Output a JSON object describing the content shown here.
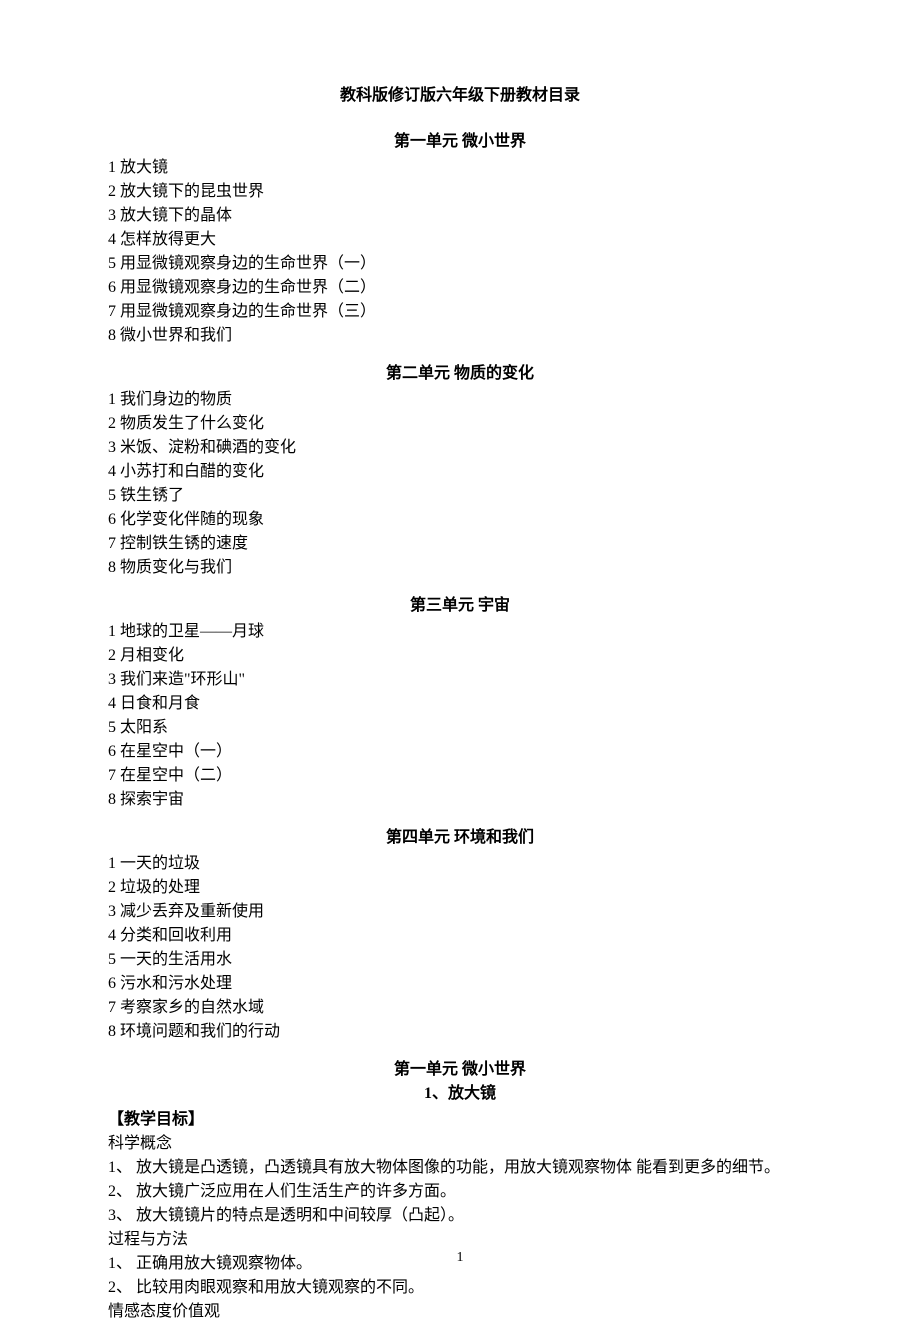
{
  "doc": {
    "title": "教科版修订版六年级下册教材目录",
    "page_number": "1",
    "background_color": "#ffffff",
    "text_color": "#000000",
    "font_family": "SimSun",
    "base_fontsize": 16
  },
  "units": [
    {
      "header": "第一单元 微小世界",
      "items": [
        "1 放大镜",
        "2 放大镜下的昆虫世界",
        "3 放大镜下的晶体",
        "4 怎样放得更大",
        "5 用显微镜观察身边的生命世界（一）",
        "6 用显微镜观察身边的生命世界（二）",
        "7 用显微镜观察身边的生命世界（三）",
        "8 微小世界和我们"
      ]
    },
    {
      "header": "第二单元 物质的变化",
      "items": [
        "1 我们身边的物质",
        "2 物质发生了什么变化",
        "3 米饭、淀粉和碘酒的变化",
        "4 小苏打和白醋的变化",
        "5 铁生锈了",
        "6 化学变化伴随的现象",
        "7 控制铁生锈的速度",
        "8 物质变化与我们"
      ]
    },
    {
      "header": "第三单元 宇宙",
      "items": [
        "1 地球的卫星——月球",
        "2 月相变化",
        "3 我们来造\"环形山\"",
        "4 日食和月食",
        "5 太阳系",
        "6 在星空中（一）",
        "7 在星空中（二）",
        "8 探索宇宙"
      ]
    },
    {
      "header": "第四单元 环境和我们",
      "items": [
        "1 一天的垃圾",
        "2 垃圾的处理",
        "3 减少丢弃及重新使用",
        "4 分类和回收利用",
        "5 一天的生活用水",
        "6 污水和污水处理",
        "7 考察家乡的自然水域",
        "8 环境问题和我们的行动"
      ]
    }
  ],
  "lesson": {
    "unit_line": "第一单元 微小世界",
    "title_line": "1、放大镜",
    "goal_heading": "【教学目标】",
    "sections": [
      {
        "label": "科学概念",
        "points": [
          "1、  放大镜是凸透镜，凸透镜具有放大物体图像的功能，用放大镜观察物体 能看到更多的细节。",
          "2、  放大镜广泛应用在人们生活生产的许多方面。",
          "3、  放大镜镜片的特点是透明和中间较厚（凸起）。"
        ]
      },
      {
        "label": "过程与方法",
        "points": [
          "1、  正确用放大镜观察物体。",
          "2、  比较用肉眼观察和用放大镜观察的不同。"
        ]
      },
      {
        "label": "情感态度价值观",
        "points": []
      }
    ]
  }
}
